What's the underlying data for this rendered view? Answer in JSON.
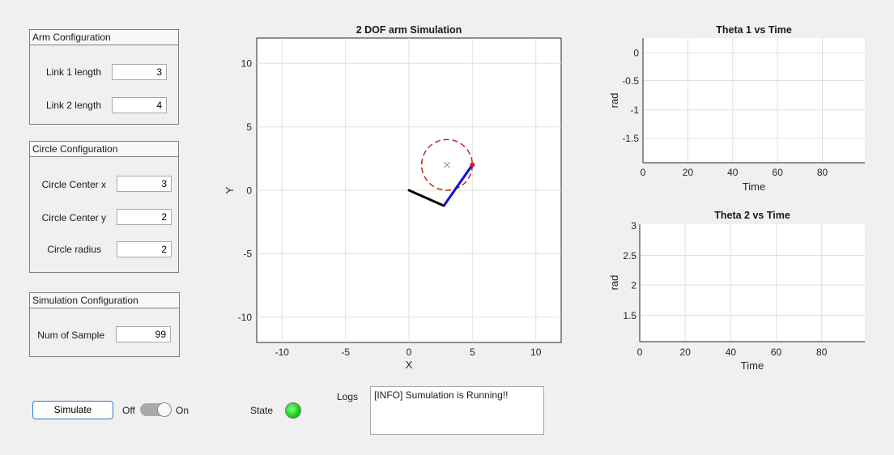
{
  "arm_config": {
    "title": "Arm Configuration",
    "link1_label": "Link 1 length",
    "link1_value": "3",
    "link2_label": "Link 2 length",
    "link2_value": "4"
  },
  "circle_config": {
    "title": "Circle Configuration",
    "cx_label": "Circle Center x",
    "cx_value": "3",
    "cy_label": "Circle Center y",
    "cy_value": "2",
    "r_label": "Circle radius",
    "r_value": "2"
  },
  "sim_config": {
    "title": "Simulation Configuration",
    "samples_label": "Num of Sample",
    "samples_value": "99"
  },
  "controls": {
    "simulate_label": "Simulate",
    "off_label": "Off",
    "on_label": "On",
    "switch_state": "On",
    "state_label": "State",
    "lamp_color": "#19d619",
    "logs_label": "Logs",
    "log_text": "[INFO] Sumulation is Running!!"
  },
  "sim_plot": {
    "title": "2 DOF arm Simulation",
    "xlabel": "X",
    "ylabel": "Y",
    "xticks": [
      "-10",
      "-5",
      "0",
      "5",
      "10"
    ],
    "yticks": [
      "10",
      "5",
      "0",
      "-5",
      "-10"
    ]
  },
  "theta1_plot": {
    "title": "Theta 1 vs Time",
    "xlabel": "Time",
    "ylabel": "rad",
    "xticks": [
      "0",
      "20",
      "40",
      "60",
      "80"
    ],
    "yticks": [
      "0",
      "-0.5",
      "-1",
      "-1.5"
    ]
  },
  "theta2_plot": {
    "title": "Theta 2 vs Time",
    "xlabel": "Time",
    "ylabel": "rad",
    "xticks": [
      "0",
      "20",
      "40",
      "60",
      "80"
    ],
    "yticks": [
      "3",
      "2.5",
      "2",
      "1.5"
    ]
  },
  "chart_data": [
    {
      "type": "line",
      "title": "2 DOF arm Simulation",
      "xlabel": "X",
      "ylabel": "Y",
      "xlim": [
        -12,
        12
      ],
      "ylim": [
        -12,
        12
      ],
      "grid": true,
      "series": [
        {
          "values": [
            [
              0,
              0
            ],
            [
              2.75,
              -1.22
            ]
          ],
          "color": "#000000"
        },
        {
          "values": [
            [
              2.75,
              -1.22
            ],
            [
              5.0,
              2.0
            ]
          ],
          "color": "#1010d0"
        }
      ],
      "circle": {
        "cx": 3,
        "cy": 2,
        "r": 2,
        "color": "#d02020",
        "style": "dashed"
      },
      "center_marker": {
        "x": 3,
        "y": 2,
        "marker": "x"
      },
      "end_point": {
        "x": 5.0,
        "y": 2.0,
        "color": "#d02020"
      }
    },
    {
      "type": "line",
      "title": "Theta 1 vs Time",
      "xlabel": "Time",
      "ylabel": "rad",
      "xlim": [
        0,
        99
      ],
      "ylim": [
        -1.95,
        0.3
      ],
      "grid": true,
      "series": []
    },
    {
      "type": "line",
      "title": "Theta 2 vs Time",
      "xlabel": "Time",
      "ylabel": "rad",
      "xlim": [
        0,
        99
      ],
      "ylim": [
        1.05,
        3.0
      ],
      "grid": true,
      "series": []
    }
  ]
}
